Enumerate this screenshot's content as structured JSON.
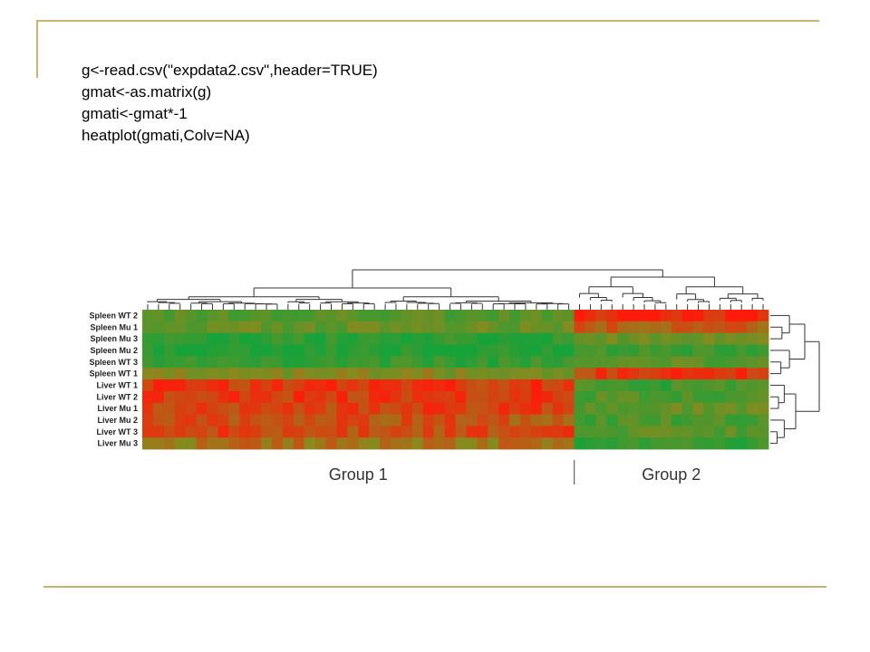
{
  "colors": {
    "rule": "#c9b46b",
    "low": "#18a23a",
    "mid": "#8a8a1e",
    "high": "#ff1a0a"
  },
  "code": {
    "lines": [
      "g<-read.csv(\"expdata2.csv\",header=TRUE)",
      "gmat<-as.matrix(g)",
      "gmati<-gmat*-1",
      "heatplot(gmati,Colv=NA)"
    ]
  },
  "chart_data": {
    "type": "heatmap",
    "title": "",
    "rows": [
      "Spleen WT 2",
      "Spleen Mu 1",
      "Spleen Mu 3",
      "Spleen Mu 2",
      "Spleen WT 3",
      "Spleen WT 1",
      "Liver WT 1",
      "Liver WT 2",
      "Liver Mu 1",
      "Liver Mu 2",
      "Liver WT 3",
      "Liver Mu 3"
    ],
    "column_groups": [
      {
        "label": "Group 1",
        "columns": 40
      },
      {
        "label": "Group 2",
        "columns": 18
      }
    ],
    "row_pattern": {
      "Group 1": [
        -0.5,
        -0.3,
        -0.85,
        -0.95,
        -0.7,
        -0.1,
        0.75,
        0.7,
        0.65,
        0.5,
        0.6,
        0.2
      ],
      "Group 2": [
        0.9,
        0.45,
        -0.3,
        -0.75,
        -0.5,
        0.7,
        -0.65,
        -0.5,
        -0.35,
        -0.55,
        -0.45,
        -0.75
      ]
    },
    "color_scale": [
      "green",
      "red"
    ],
    "row_dendrogram": "right",
    "column_dendrogram": "top"
  }
}
